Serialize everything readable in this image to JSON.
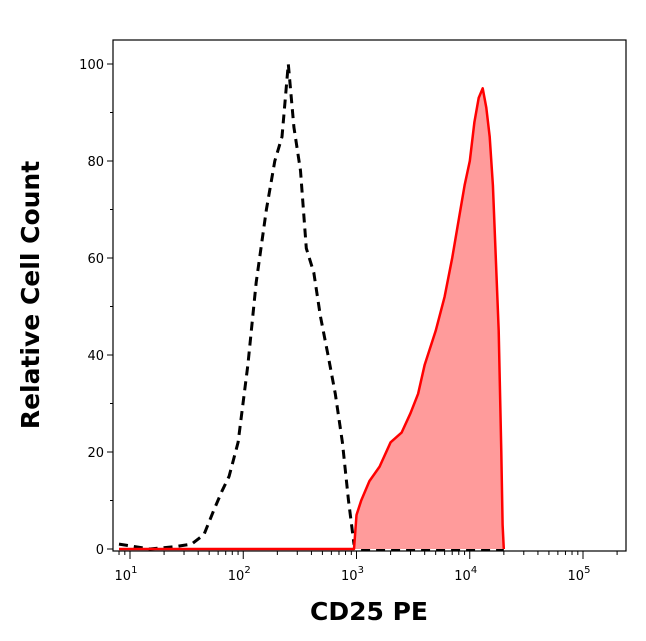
{
  "chart_data": {
    "type": "area",
    "xlabel": "CD25 PE",
    "ylabel": "Relative Cell Count",
    "xscale": "log",
    "xlim": [
      8,
      20000
    ],
    "ylim": [
      0,
      105
    ],
    "grid": false,
    "x_ticks": [
      {
        "base": "10",
        "exp": "1",
        "value": 10
      },
      {
        "base": "10",
        "exp": "2",
        "value": 100
      },
      {
        "base": "10",
        "exp": "3",
        "value": 1000
      },
      {
        "base": "10",
        "exp": "4",
        "value": 10000
      },
      {
        "base": "10",
        "exp": "5",
        "value": 100000
      }
    ],
    "y_ticks": [
      {
        "label": "0",
        "value": 0
      },
      {
        "label": "20",
        "value": 20
      },
      {
        "label": "40",
        "value": 40
      },
      {
        "label": "60",
        "value": 60
      },
      {
        "label": "80",
        "value": 80
      },
      {
        "label": "100",
        "value": 100
      }
    ],
    "series": [
      {
        "style": "dashed",
        "color": "#000000",
        "fill": "none",
        "x": [
          8,
          15,
          25,
          35,
          45,
          55,
          65,
          75,
          90,
          110,
          130,
          160,
          190,
          220,
          250,
          280,
          320,
          360,
          420,
          480,
          560,
          650,
          750,
          850,
          950,
          1000,
          1100,
          1500,
          3000,
          8000,
          20000
        ],
        "y": [
          1,
          0,
          0.5,
          1,
          3,
          8,
          12,
          15,
          22,
          38,
          55,
          70,
          80,
          85,
          100,
          87,
          78,
          62,
          57,
          48,
          40,
          32,
          22,
          10,
          1,
          0,
          0,
          0,
          0,
          0,
          0
        ]
      },
      {
        "style": "solid",
        "color": "#ff0000",
        "fill": "#ff9b9b",
        "x": [
          8,
          950,
          1000,
          1100,
          1300,
          1600,
          2000,
          2500,
          3000,
          3500,
          4000,
          5000,
          6000,
          7000,
          8000,
          9000,
          10000,
          11000,
          12000,
          13000,
          14000,
          15000,
          16000,
          17000,
          18000,
          19000,
          19500,
          20000
        ],
        "y": [
          0,
          0,
          7,
          10,
          14,
          17,
          22,
          24,
          28,
          32,
          38,
          45,
          52,
          60,
          68,
          75,
          80,
          88,
          93,
          95,
          91,
          85,
          75,
          60,
          45,
          20,
          5,
          0
        ]
      }
    ]
  }
}
